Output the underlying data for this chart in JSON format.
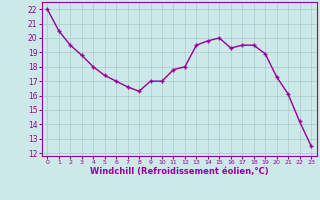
{
  "x": [
    0,
    1,
    2,
    3,
    4,
    5,
    6,
    7,
    8,
    9,
    10,
    11,
    12,
    13,
    14,
    15,
    16,
    17,
    18,
    19,
    20,
    21,
    22,
    23
  ],
  "y": [
    22.0,
    20.5,
    19.5,
    18.8,
    18.0,
    17.4,
    17.0,
    16.6,
    16.3,
    17.0,
    17.0,
    17.8,
    18.0,
    19.5,
    19.8,
    20.0,
    19.3,
    19.5,
    19.5,
    18.9,
    17.3,
    16.1,
    14.2,
    12.5
  ],
  "line_color": "#990099",
  "marker": "+",
  "bg_color": "#cce8e8",
  "grid_color": "#aacccc",
  "xlabel": "Windchill (Refroidissement éolien,°C)",
  "xlabel_color": "#990099",
  "tick_color": "#990099",
  "ylabel_ticks": [
    12,
    13,
    14,
    15,
    16,
    17,
    18,
    19,
    20,
    21,
    22
  ],
  "xtick_labels": [
    "0",
    "1",
    "2",
    "3",
    "4",
    "5",
    "6",
    "7",
    "8",
    "9",
    "10",
    "11",
    "12",
    "13",
    "14",
    "15",
    "16",
    "17",
    "18",
    "19",
    "20",
    "21",
    "22",
    "23"
  ],
  "ylim": [
    11.8,
    22.5
  ],
  "xlim": [
    -0.5,
    23.5
  ]
}
